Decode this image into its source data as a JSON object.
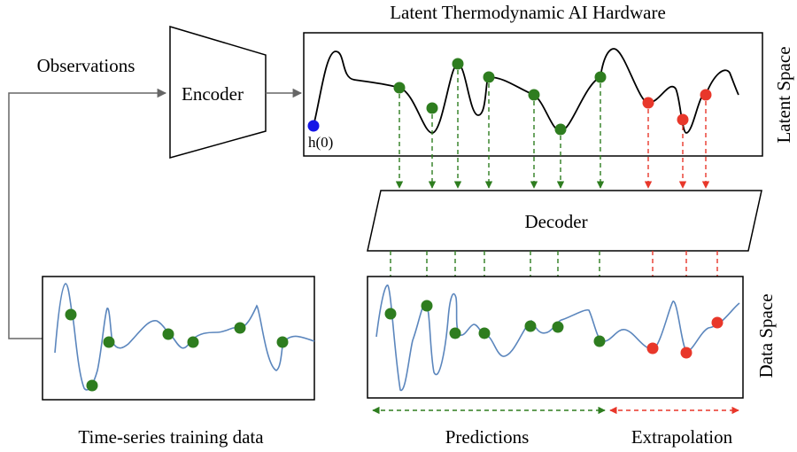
{
  "title": "Latent Thermodynamic AI Hardware",
  "labels": {
    "observations": "Observations",
    "encoder": "Encoder",
    "decoder": "Decoder",
    "latent_space": "Latent Space",
    "data_space": "Data Space",
    "initial_state": "h(0)",
    "training_data": "Time-series training data",
    "predictions": "Predictions",
    "extrapolation": "Extrapolation"
  },
  "colors": {
    "prediction": "#2e7d1f",
    "extrapolation": "#e8372a",
    "initial_state": "#1515e6",
    "curve_latent": "#000000",
    "curve_data": "#5b86bd",
    "flow_arrow": "#666666"
  },
  "counts": {
    "latent_prediction_points": 7,
    "latent_extrapolation_points": 3,
    "data_prediction_points": 7,
    "data_extrapolation_points": 3,
    "training_points": 7
  }
}
